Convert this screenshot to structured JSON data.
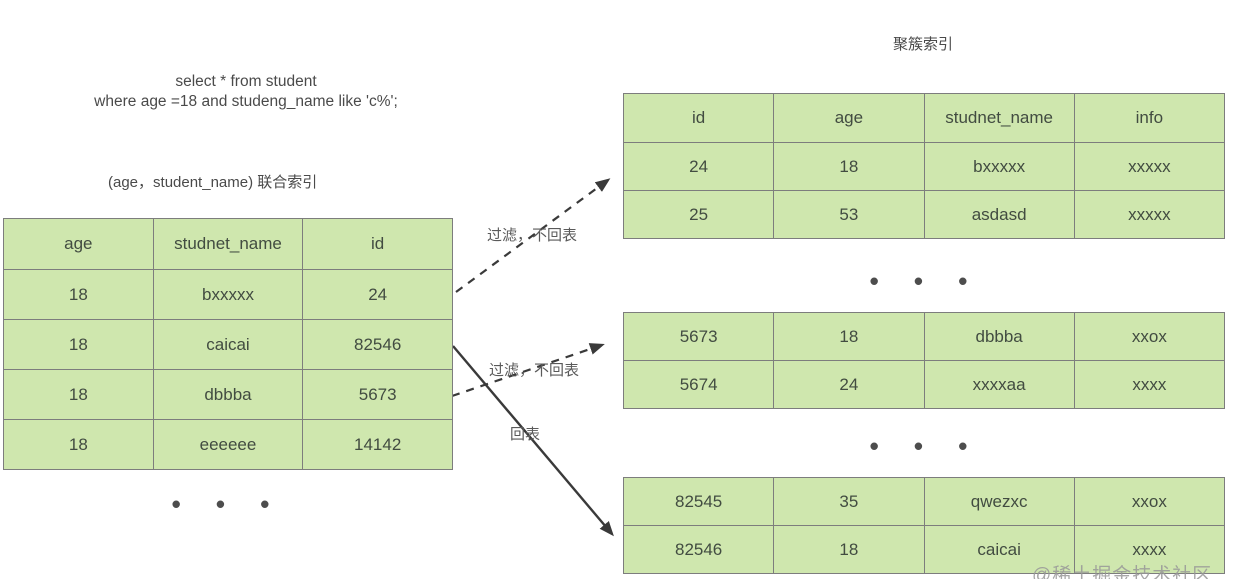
{
  "colors": {
    "bg": "#ffffff",
    "cell_fill": "#cfe7ae",
    "cell_border": "#7d7d7d",
    "cell_text": "#424c41",
    "label_text": "#4a4a4a",
    "arrow_label": "#5a5a5a",
    "arrow": "#3a3a3a"
  },
  "sql": {
    "line1": "select * from student",
    "line2": "where age =18 and studeng_name like 'c%';"
  },
  "left_section": {
    "caption": "(age，student_name) 联合索引",
    "table": {
      "headers": [
        "age",
        "studnet_name",
        "id"
      ],
      "rows": [
        [
          "18",
          "bxxxxx",
          "24"
        ],
        [
          "18",
          "caicai",
          "82546"
        ],
        [
          "18",
          "dbbba",
          "5673"
        ],
        [
          "18",
          "eeeeee",
          "14142"
        ]
      ]
    },
    "ellipsis": "• • •"
  },
  "right_section": {
    "caption": "聚簇索引",
    "top_table": {
      "headers": [
        "id",
        "age",
        "studnet_name",
        "info"
      ],
      "rows": [
        [
          "24",
          "18",
          "bxxxxx",
          "xxxxx"
        ],
        [
          "25",
          "53",
          "asdasd",
          "xxxxx"
        ]
      ]
    },
    "ellipsis1": "• • •",
    "middle_table": {
      "rows": [
        [
          "5673",
          "18",
          "dbbba",
          "xxox"
        ],
        [
          "5674",
          "24",
          "xxxxaa",
          "xxxx"
        ]
      ]
    },
    "ellipsis2": "• • •",
    "bottom_table": {
      "rows": [
        [
          "82545",
          "35",
          "qwezxc",
          "xxox"
        ],
        [
          "82546",
          "18",
          "caicai",
          "xxxx"
        ]
      ]
    }
  },
  "arrows": [
    {
      "label": "过滤，不回表",
      "style": "dashed"
    },
    {
      "label": "过滤，不回表",
      "style": "dashed"
    },
    {
      "label": "回表",
      "style": "solid"
    }
  ],
  "watermark": "@稀土掘金技术社区"
}
